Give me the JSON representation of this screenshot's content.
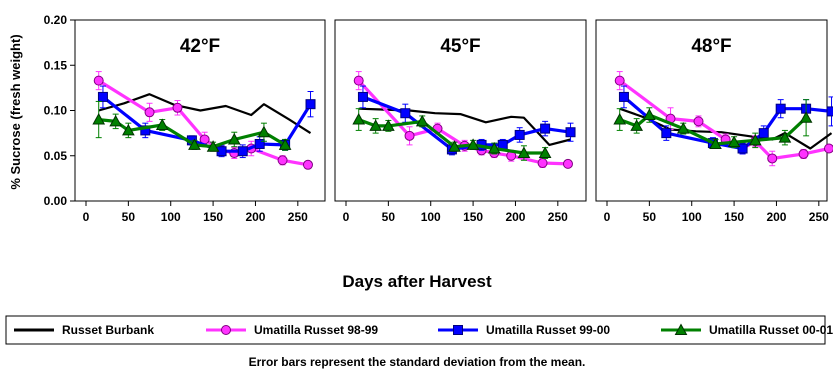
{
  "chart_data": [
    {
      "type": "line",
      "title": "42°F",
      "ylabel": "% Sucrose (fresh weight)",
      "ylim": [
        0,
        0.2
      ],
      "yticks": [
        "0.00",
        "0.05",
        "0.10",
        "0.15",
        "0.20"
      ],
      "xlim": [
        0,
        275
      ],
      "xticks": [
        "0",
        "50",
        "100",
        "150",
        "200",
        "250"
      ],
      "series": [
        {
          "name": "Russet Burbank",
          "color": "#000000",
          "marker": "none",
          "x": [
            15,
            45,
            75,
            105,
            135,
            165,
            195,
            210,
            240,
            265
          ],
          "y": [
            0.1,
            0.108,
            0.118,
            0.106,
            0.1,
            0.105,
            0.095,
            0.107,
            0.09,
            0.075
          ]
        },
        {
          "name": "Umatilla Russet 98-99",
          "color": "#ff33ff",
          "marker": "circle",
          "x": [
            15,
            75,
            108,
            140,
            160,
            175,
            195,
            232,
            262
          ],
          "y": [
            0.133,
            0.098,
            0.103,
            0.068,
            0.056,
            0.053,
            0.058,
            0.045,
            0.04
          ],
          "err": [
            0.01,
            0.01,
            0.008,
            0.008,
            0.006,
            0.006,
            0.008,
            0.005,
            0.003
          ]
        },
        {
          "name": "Umatilla Russet 99-00",
          "color": "#0000ff",
          "marker": "square",
          "x": [
            20,
            70,
            125,
            160,
            185,
            205,
            235,
            265
          ],
          "y": [
            0.115,
            0.078,
            0.067,
            0.055,
            0.055,
            0.063,
            0.062,
            0.107
          ],
          "err": [
            0.012,
            0.008,
            0.005,
            0.006,
            0.007,
            0.008,
            0.006,
            0.014
          ]
        },
        {
          "name": "Umatilla Russet 00-01",
          "color": "#008000",
          "marker": "triangle",
          "x": [
            15,
            35,
            50,
            90,
            128,
            150,
            175,
            210,
            235
          ],
          "y": [
            0.09,
            0.088,
            0.078,
            0.084,
            0.062,
            0.06,
            0.068,
            0.076,
            0.062
          ],
          "err": [
            0.02,
            0.008,
            0.008,
            0.006,
            0.005,
            0.005,
            0.008,
            0.01,
            0.006
          ]
        }
      ]
    },
    {
      "type": "line",
      "title": "45°F",
      "ylim": [
        0,
        0.2
      ],
      "xlim": [
        0,
        275
      ],
      "xticks": [
        "0",
        "50",
        "100",
        "150",
        "200",
        "250"
      ],
      "series": [
        {
          "name": "Russet Burbank",
          "color": "#000000",
          "marker": "none",
          "x": [
            15,
            45,
            75,
            105,
            135,
            165,
            195,
            210,
            240,
            265
          ],
          "y": [
            0.102,
            0.101,
            0.1,
            0.097,
            0.096,
            0.087,
            0.093,
            0.092,
            0.062,
            0.068
          ]
        },
        {
          "name": "Umatilla Russet 98-99",
          "color": "#ff33ff",
          "marker": "circle",
          "x": [
            15,
            75,
            108,
            140,
            160,
            175,
            195,
            232,
            262
          ],
          "y": [
            0.133,
            0.072,
            0.08,
            0.061,
            0.056,
            0.053,
            0.05,
            0.042,
            0.041
          ],
          "err": [
            0.01,
            0.01,
            0.006,
            0.006,
            0.005,
            0.005,
            0.006,
            0.005,
            0.003
          ]
        },
        {
          "name": "Umatilla Russet 99-00",
          "color": "#0000ff",
          "marker": "square",
          "x": [
            20,
            70,
            125,
            160,
            185,
            205,
            235,
            265
          ],
          "y": [
            0.115,
            0.097,
            0.057,
            0.062,
            0.062,
            0.073,
            0.08,
            0.076
          ],
          "err": [
            0.012,
            0.01,
            0.006,
            0.006,
            0.006,
            0.008,
            0.008,
            0.01
          ]
        },
        {
          "name": "Umatilla Russet 00-01",
          "color": "#008000",
          "marker": "triangle",
          "x": [
            15,
            35,
            50,
            90,
            128,
            150,
            175,
            210,
            235
          ],
          "y": [
            0.09,
            0.083,
            0.083,
            0.088,
            0.06,
            0.062,
            0.058,
            0.053,
            0.053
          ],
          "err": [
            0.012,
            0.008,
            0.006,
            0.006,
            0.005,
            0.005,
            0.006,
            0.008,
            0.006
          ]
        }
      ]
    },
    {
      "type": "line",
      "title": "48°F",
      "ylim": [
        0,
        0.2
      ],
      "xlim": [
        0,
        275
      ],
      "xticks": [
        "0",
        "50",
        "100",
        "150",
        "200",
        "250"
      ],
      "series": [
        {
          "name": "Russet Burbank",
          "color": "#000000",
          "marker": "none",
          "x": [
            15,
            45,
            75,
            105,
            135,
            165,
            195,
            210,
            240,
            265
          ],
          "y": [
            0.102,
            0.092,
            0.079,
            0.077,
            0.076,
            0.072,
            0.068,
            0.075,
            0.058,
            0.075
          ]
        },
        {
          "name": "Umatilla Russet 98-99",
          "color": "#ff33ff",
          "marker": "circle",
          "x": [
            15,
            75,
            108,
            140,
            160,
            175,
            195,
            232,
            262
          ],
          "y": [
            0.133,
            0.091,
            0.088,
            0.068,
            0.058,
            0.066,
            0.047,
            0.052,
            0.058
          ],
          "err": [
            0.01,
            0.012,
            0.006,
            0.006,
            0.006,
            0.006,
            0.008,
            0.005,
            0.004
          ]
        },
        {
          "name": "Umatilla Russet 99-00",
          "color": "#0000ff",
          "marker": "square",
          "x": [
            20,
            70,
            125,
            160,
            185,
            205,
            235,
            265
          ],
          "y": [
            0.115,
            0.075,
            0.064,
            0.058,
            0.075,
            0.102,
            0.102,
            0.099
          ],
          "err": [
            0.012,
            0.008,
            0.006,
            0.006,
            0.008,
            0.01,
            0.01,
            0.016
          ]
        },
        {
          "name": "Umatilla Russet 00-01",
          "color": "#008000",
          "marker": "triangle",
          "x": [
            15,
            35,
            50,
            90,
            128,
            150,
            175,
            210,
            235
          ],
          "y": [
            0.09,
            0.083,
            0.095,
            0.08,
            0.063,
            0.065,
            0.067,
            0.07,
            0.092
          ],
          "err": [
            0.012,
            0.008,
            0.008,
            0.006,
            0.005,
            0.006,
            0.008,
            0.008,
            0.02
          ]
        }
      ]
    }
  ],
  "xlabel": "Days after Harvest",
  "legend": {
    "position": "bottom",
    "items": [
      "Russet Burbank",
      "Umatilla Russet 98-99",
      "Umatilla Russet 99-00",
      "Umatilla Russet 00-01"
    ]
  },
  "footnote": "Error bars represent the standard deviation from the mean."
}
